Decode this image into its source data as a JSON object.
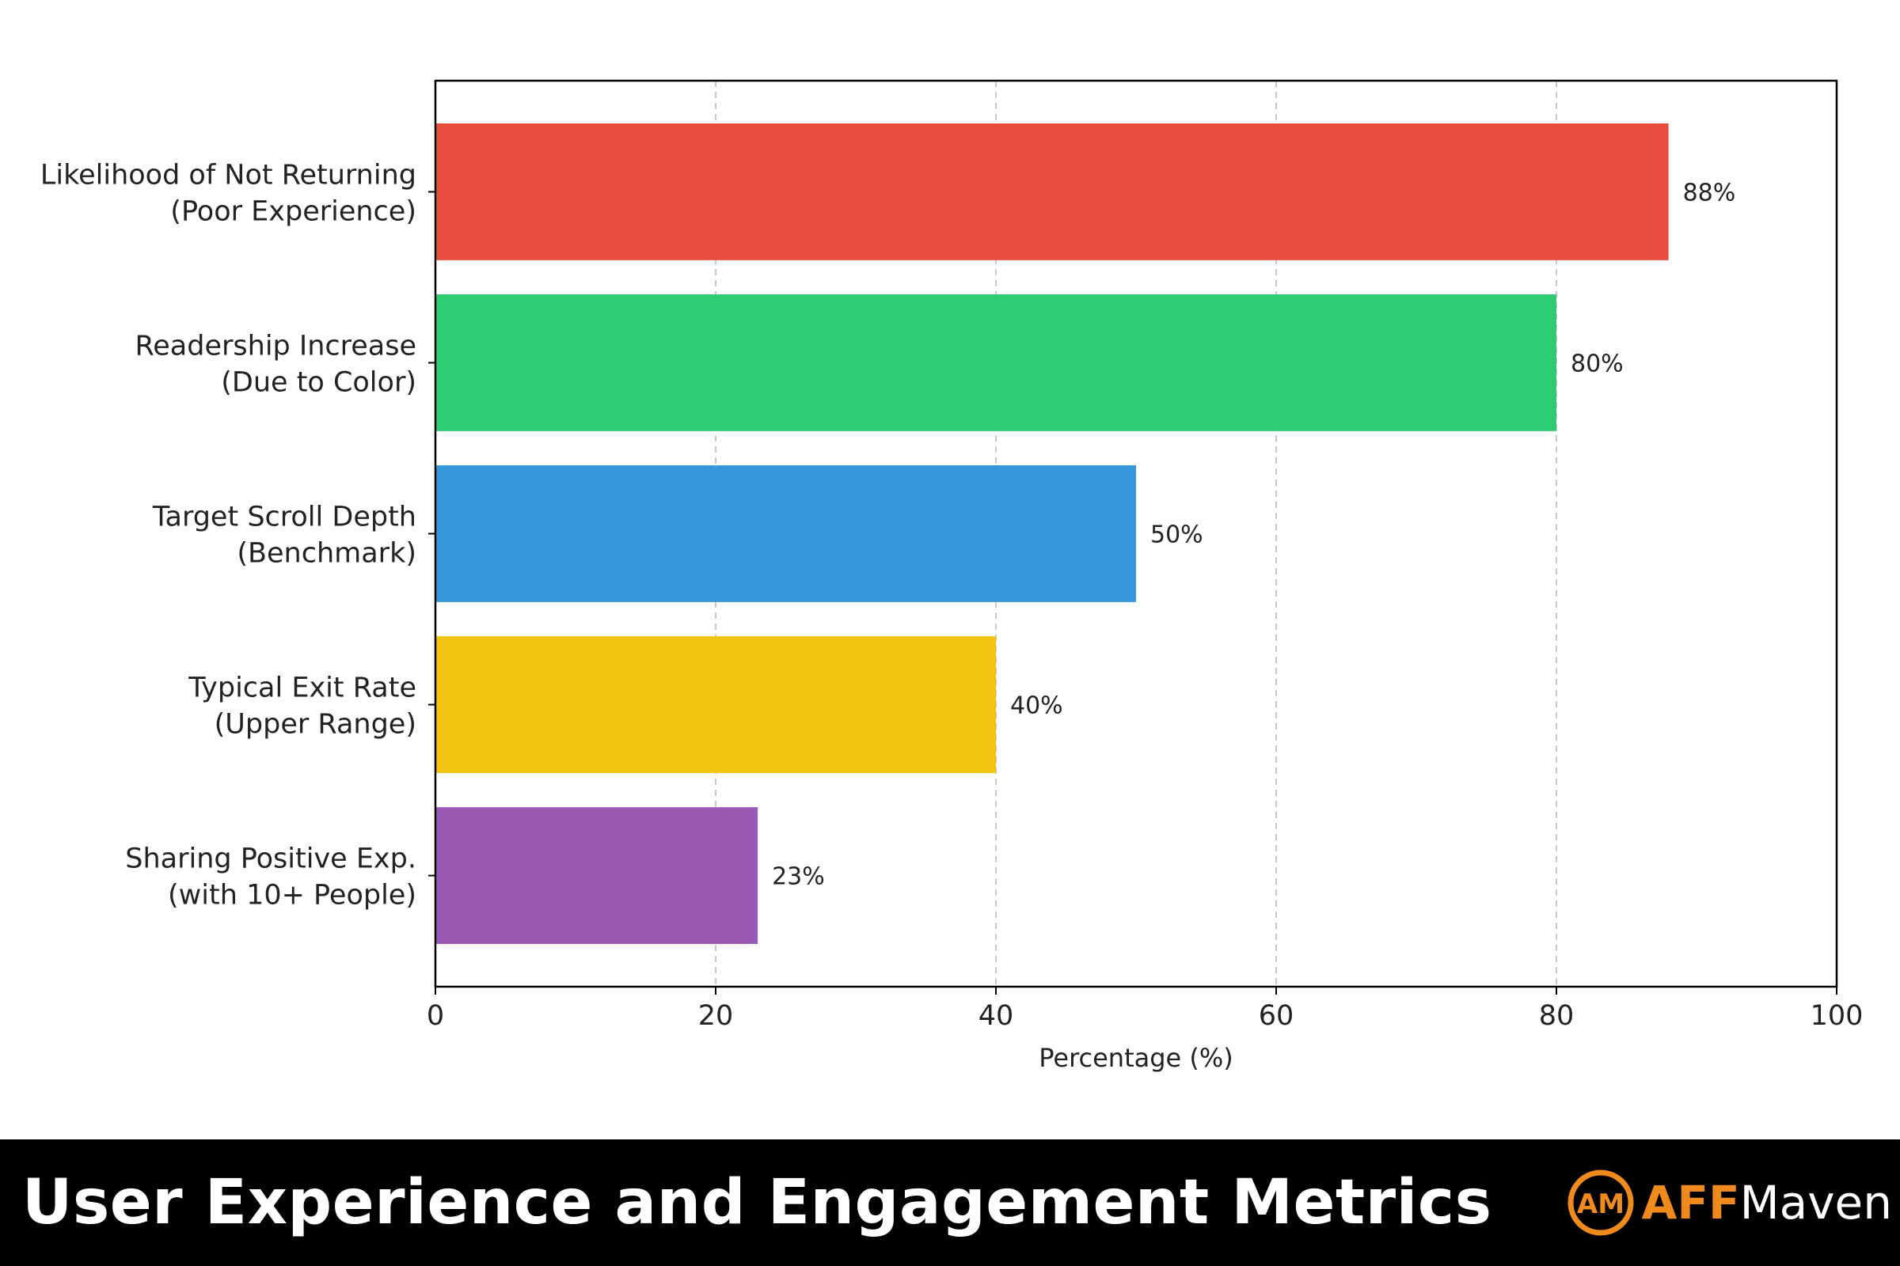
{
  "chart_data": {
    "type": "bar",
    "orientation": "horizontal",
    "categories": [
      [
        "Likelihood of Not Returning",
        "(Poor Experience)"
      ],
      [
        "Readership Increase",
        "(Due to Color)"
      ],
      [
        "Target Scroll Depth",
        "(Benchmark)"
      ],
      [
        "Typical Exit Rate",
        "(Upper Range)"
      ],
      [
        "Sharing Positive Exp.",
        "(with 10+ People)"
      ]
    ],
    "values": [
      88,
      80,
      50,
      40,
      23
    ],
    "value_labels": [
      "88%",
      "80%",
      "50%",
      "40%",
      "23%"
    ],
    "colors": [
      "#e74c3c",
      "#2ecc71",
      "#3498db",
      "#f1c40f",
      "#9b59b6"
    ],
    "xlabel": "Percentage (%)",
    "ylabel": "",
    "xlim": [
      0,
      100
    ],
    "xticks": [
      0,
      20,
      40,
      60,
      80,
      100
    ],
    "xtick_labels": [
      "0",
      "20",
      "40",
      "60",
      "80",
      "100"
    ],
    "grid": "vertical dashed"
  },
  "footer": {
    "title": "User Experience and Engagement Metrics",
    "brand_aff": "AFF",
    "brand_maven": "Maven",
    "brand_mark_text": "AM",
    "brand_color": "#f08a1c"
  }
}
